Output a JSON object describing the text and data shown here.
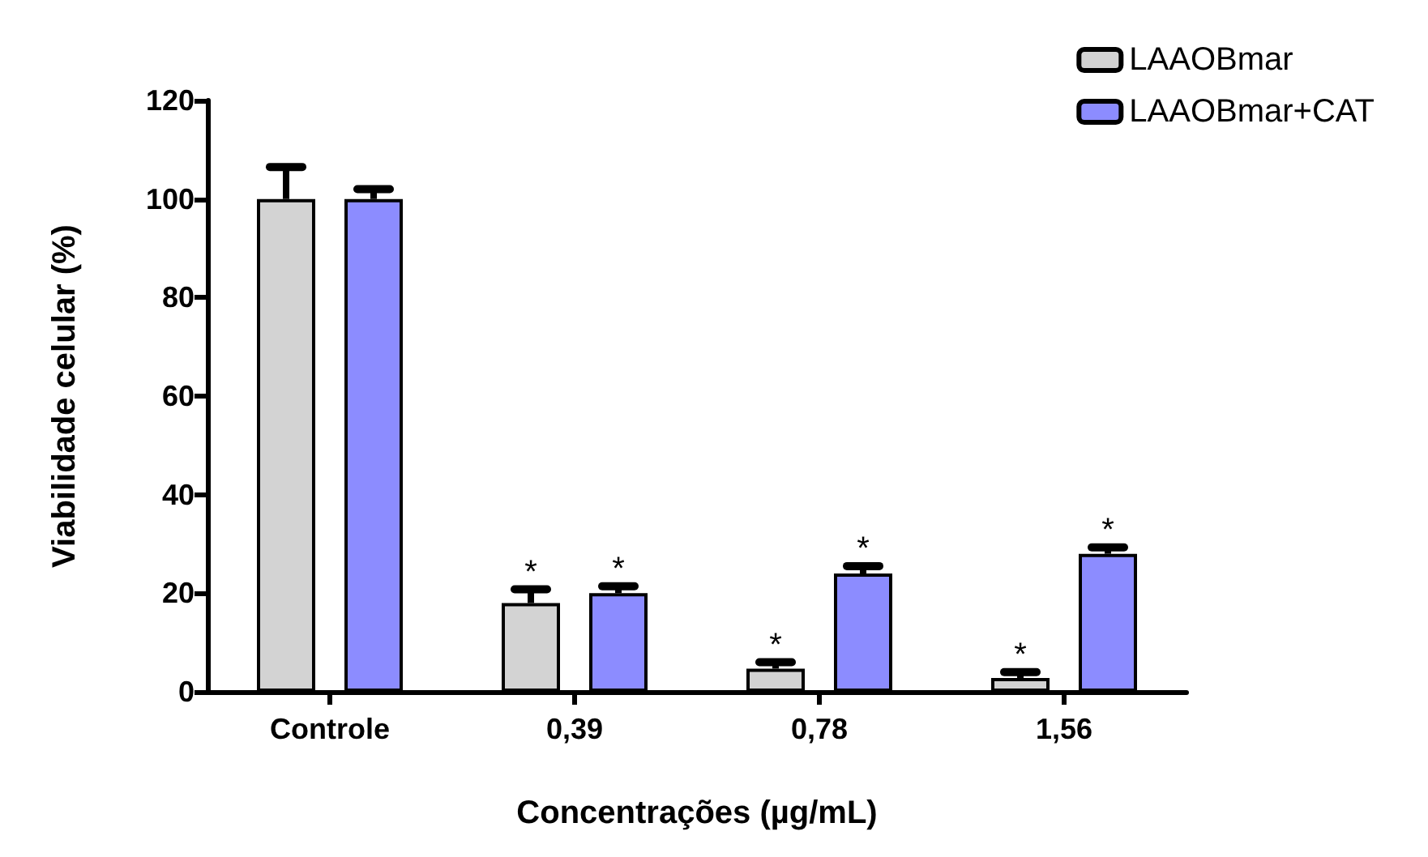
{
  "chart_data": {
    "type": "bar",
    "xlabel": "Concentrações (µg/mL)",
    "ylabel": "Viabilidade celular (%)",
    "categories": [
      "Controle",
      "0,39",
      "0,78",
      "1,56"
    ],
    "series": [
      {
        "name": "LAAOBmar",
        "color": "#d3d3d3",
        "values": [
          100,
          18,
          4.7,
          2.8
        ],
        "errors": [
          [
            100,
            106.5
          ],
          [
            18,
            20.8
          ],
          [
            4.7,
            6
          ],
          [
            2.8,
            4
          ]
        ],
        "value_labels": [
          null,
          "*",
          "*",
          "*"
        ]
      },
      {
        "name": "LAAOBmar+CAT",
        "color": "#8c8cff",
        "values": [
          100,
          20,
          24,
          28
        ],
        "errors": [
          [
            100,
            102
          ],
          [
            20,
            21.4
          ],
          [
            24,
            25.5
          ],
          [
            28,
            29.3
          ]
        ],
        "value_labels": [
          null,
          "*",
          "*",
          "*"
        ]
      }
    ],
    "ylim": [
      0,
      120
    ],
    "yticks": [
      0,
      20,
      40,
      60,
      80,
      100,
      120
    ],
    "grid": false,
    "legend": "top right"
  }
}
